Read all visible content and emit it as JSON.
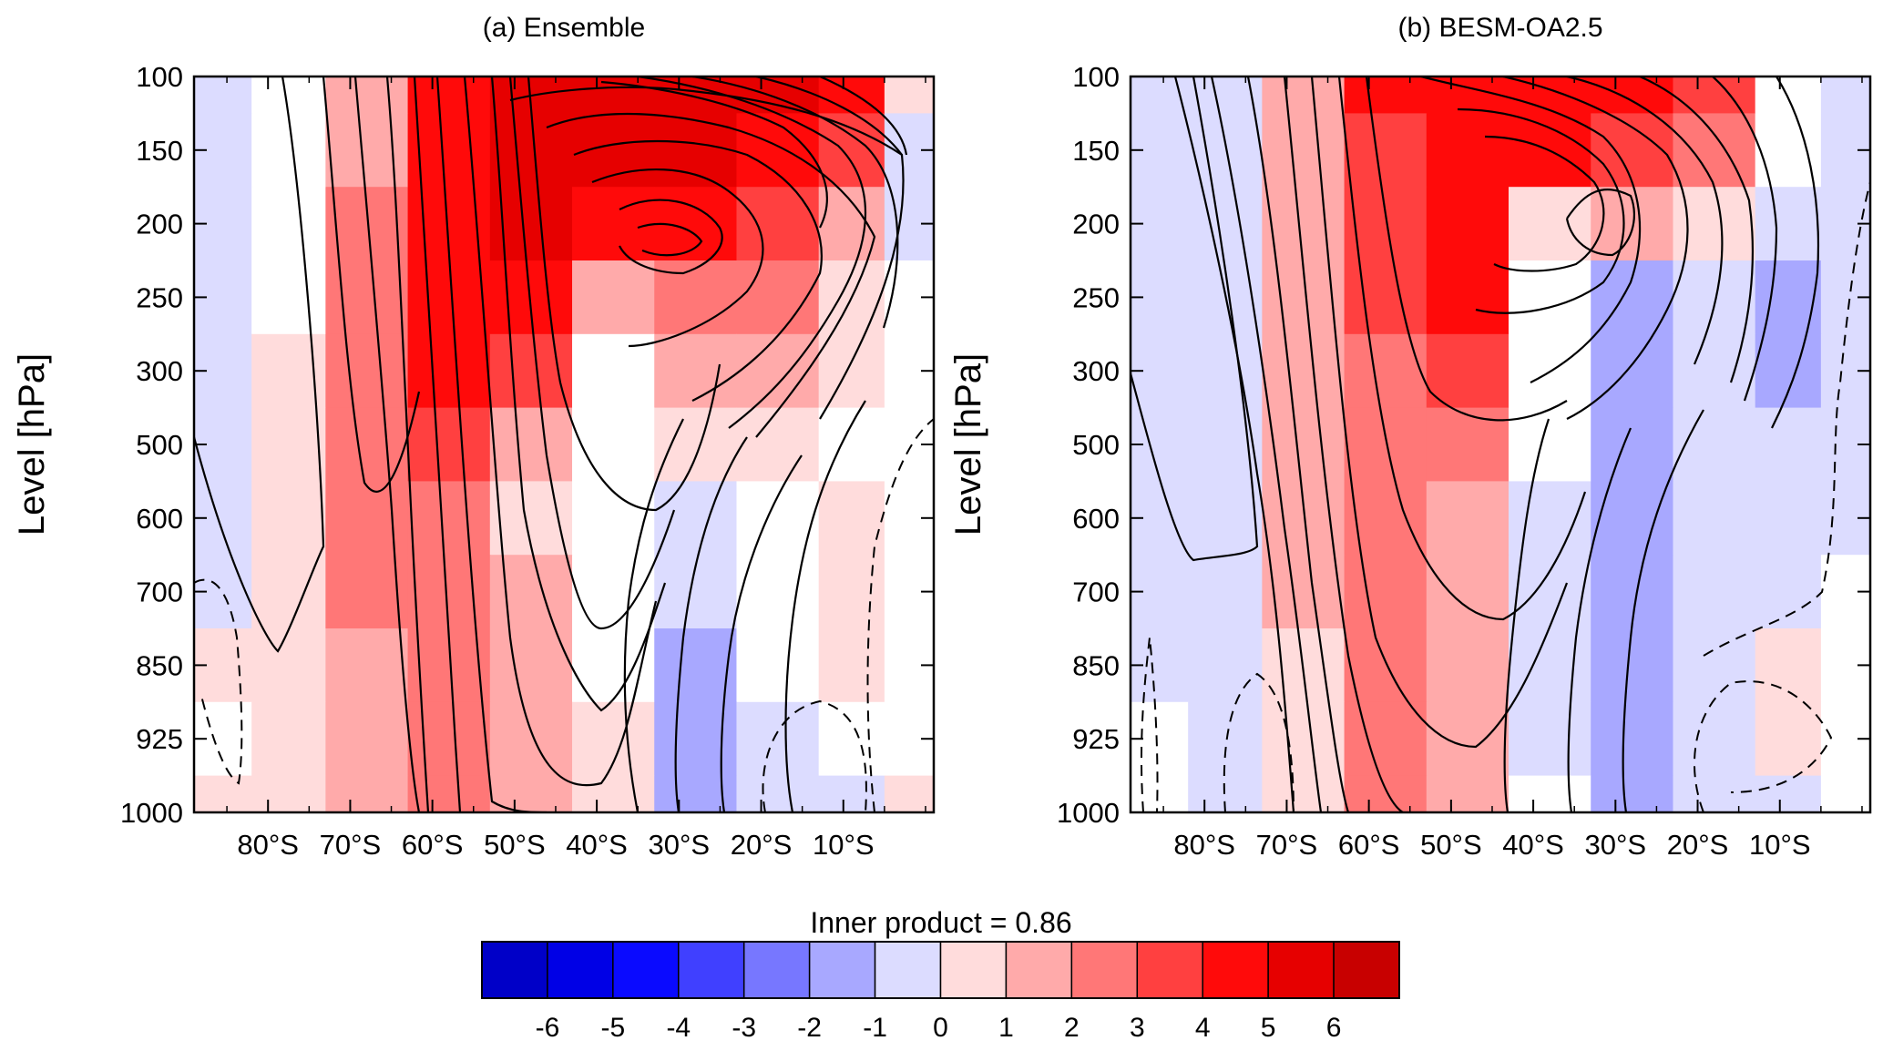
{
  "figure": {
    "inner_product_label": "Inner product = 0.86"
  },
  "chart_data": [
    {
      "type": "heatmap",
      "title": "(a) Ensemble",
      "ylabel": "Level [hPa]",
      "xlabel": "",
      "y_ticks": [
        "100",
        "150",
        "200",
        "250",
        "300",
        "500",
        "600",
        "700",
        "850",
        "925",
        "1000"
      ],
      "x_ticks": [
        "80°S",
        "70°S",
        "60°S",
        "50°S",
        "40°S",
        "30°S",
        "20°S",
        "10°S"
      ],
      "x_range": [
        -89,
        1
      ],
      "fill_grid_cols": [
        -86,
        -78,
        -68,
        -58,
        -48,
        -38,
        -28,
        -18,
        -8,
        -2
      ],
      "fill_levels": [
        [
          -1,
          0,
          2,
          5,
          6,
          6,
          6,
          6,
          5,
          1
        ],
        [
          -1,
          0,
          2,
          5,
          6,
          6,
          6,
          5,
          4,
          -1
        ],
        [
          -1,
          0,
          3,
          5,
          6,
          5,
          5,
          4,
          2,
          -1
        ],
        [
          -1,
          0,
          3,
          5,
          5,
          2,
          3,
          3,
          1,
          0
        ],
        [
          -1,
          1,
          3,
          5,
          4,
          0,
          2,
          2,
          1,
          0
        ],
        [
          -1,
          1,
          3,
          4,
          2,
          0,
          1,
          1,
          0,
          0
        ],
        [
          -1,
          1,
          3,
          3,
          1,
          0,
          -1,
          0,
          1,
          0
        ],
        [
          -1,
          1,
          3,
          3,
          2,
          0,
          -1,
          0,
          1,
          0
        ],
        [
          1,
          1,
          2,
          3,
          2,
          0,
          -2,
          0,
          1,
          0
        ],
        [
          0,
          1,
          2,
          3,
          2,
          1,
          -2,
          -1,
          0,
          0
        ],
        [
          1,
          1,
          2,
          3,
          2,
          1,
          -2,
          -1,
          -1,
          1
        ]
      ]
    },
    {
      "type": "heatmap",
      "title": "(b) BESM-OA2.5",
      "ylabel": "Level [hPa]",
      "xlabel": "",
      "y_ticks": [
        "100",
        "150",
        "200",
        "250",
        "300",
        "500",
        "600",
        "700",
        "850",
        "925",
        "1000"
      ],
      "x_ticks": [
        "80°S",
        "70°S",
        "60°S",
        "50°S",
        "40°S",
        "30°S",
        "20°S",
        "10°S"
      ],
      "x_range": [
        -89,
        1
      ],
      "fill_grid_cols": [
        -86,
        -78,
        -68,
        -58,
        -48,
        -38,
        -28,
        -18,
        -8,
        -2
      ],
      "fill_levels": [
        [
          -1,
          -1,
          2,
          5,
          5,
          5,
          5,
          4,
          0,
          -1
        ],
        [
          -1,
          -1,
          2,
          4,
          5,
          5,
          4,
          3,
          0,
          -1
        ],
        [
          -1,
          -1,
          2,
          4,
          5,
          1,
          2,
          1,
          -1,
          -1
        ],
        [
          -1,
          -1,
          2,
          4,
          5,
          0,
          -2,
          -1,
          -2,
          -1
        ],
        [
          -1,
          -1,
          2,
          3,
          4,
          0,
          -2,
          -1,
          -2,
          -1
        ],
        [
          -1,
          -1,
          2,
          3,
          3,
          0,
          -2,
          -1,
          -1,
          -1
        ],
        [
          -1,
          -1,
          2,
          3,
          2,
          -1,
          -2,
          -1,
          -1,
          -1
        ],
        [
          -1,
          -1,
          2,
          3,
          2,
          -1,
          -2,
          -1,
          -1,
          0
        ],
        [
          -1,
          -1,
          1,
          3,
          2,
          -1,
          -2,
          -1,
          1,
          0
        ],
        [
          0,
          -1,
          1,
          3,
          2,
          -1,
          -2,
          -1,
          1,
          0
        ],
        [
          0,
          -1,
          1,
          3,
          2,
          0,
          -2,
          -1,
          -1,
          0
        ]
      ]
    }
  ],
  "colorbar": {
    "tick_labels": [
      "-6",
      "-5",
      "-4",
      "-3",
      "-2",
      "-1",
      "0",
      "1",
      "2",
      "3",
      "4",
      "5",
      "6"
    ],
    "colors": [
      "#0000c8",
      "#0000e6",
      "#0a0aff",
      "#4040ff",
      "#7777ff",
      "#a8a8ff",
      "#dcdcff",
      "#ffdcdc",
      "#ffaaaa",
      "#ff7777",
      "#ff4040",
      "#ff0a0a",
      "#e60000",
      "#c80000"
    ]
  }
}
